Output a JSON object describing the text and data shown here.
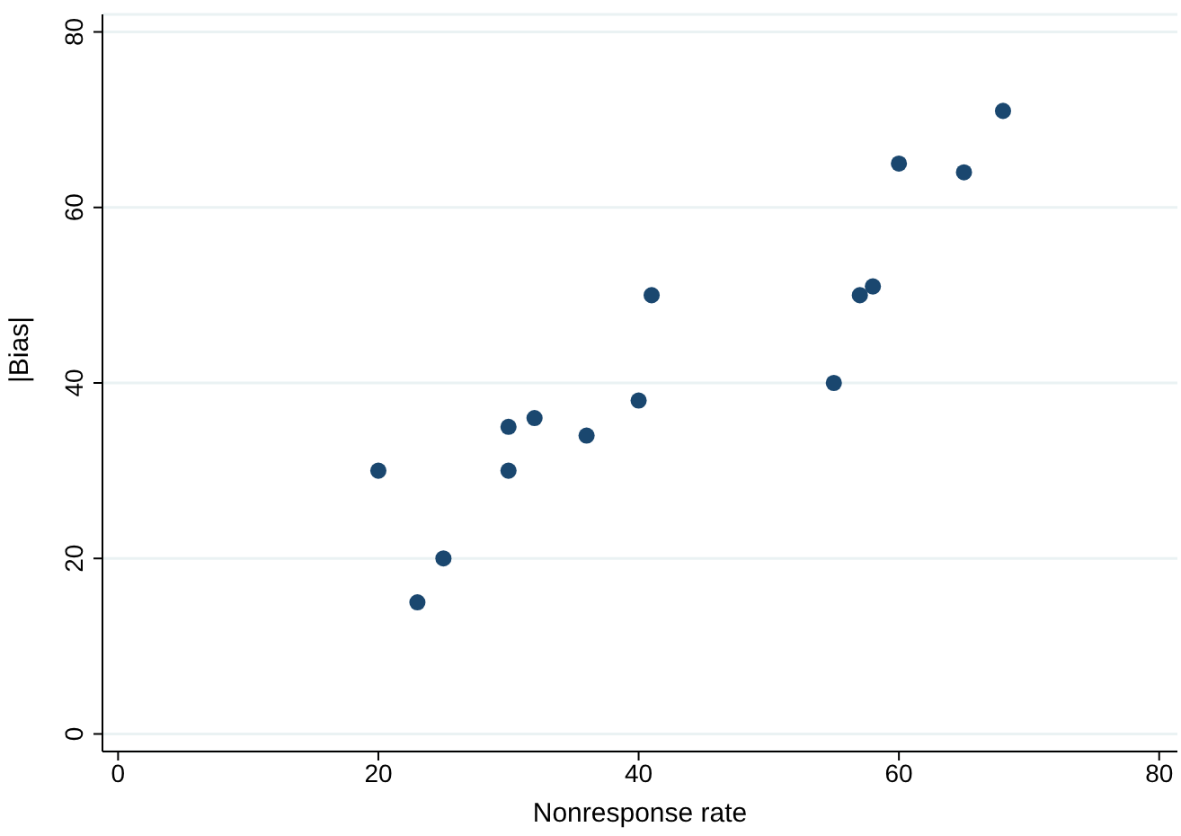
{
  "chart_data": {
    "type": "scatter",
    "xlabel": "Nonresponse rate",
    "ylabel": "|Bias|",
    "x": [
      20,
      23,
      25,
      30,
      30,
      32,
      36,
      40,
      41,
      55,
      57,
      58,
      60,
      65,
      68
    ],
    "values": [
      30,
      15,
      20,
      35,
      30,
      36,
      34,
      38,
      50,
      40,
      50,
      51,
      65,
      64,
      71
    ],
    "color": "#1a476f",
    "marker": "circle",
    "xlim": [
      -1.2,
      81.4
    ],
    "ylim": [
      -2,
      82
    ],
    "xticks": [
      0,
      20,
      40,
      60,
      80
    ],
    "yticks": [
      0,
      20,
      40,
      60,
      80
    ],
    "grid": "y"
  }
}
